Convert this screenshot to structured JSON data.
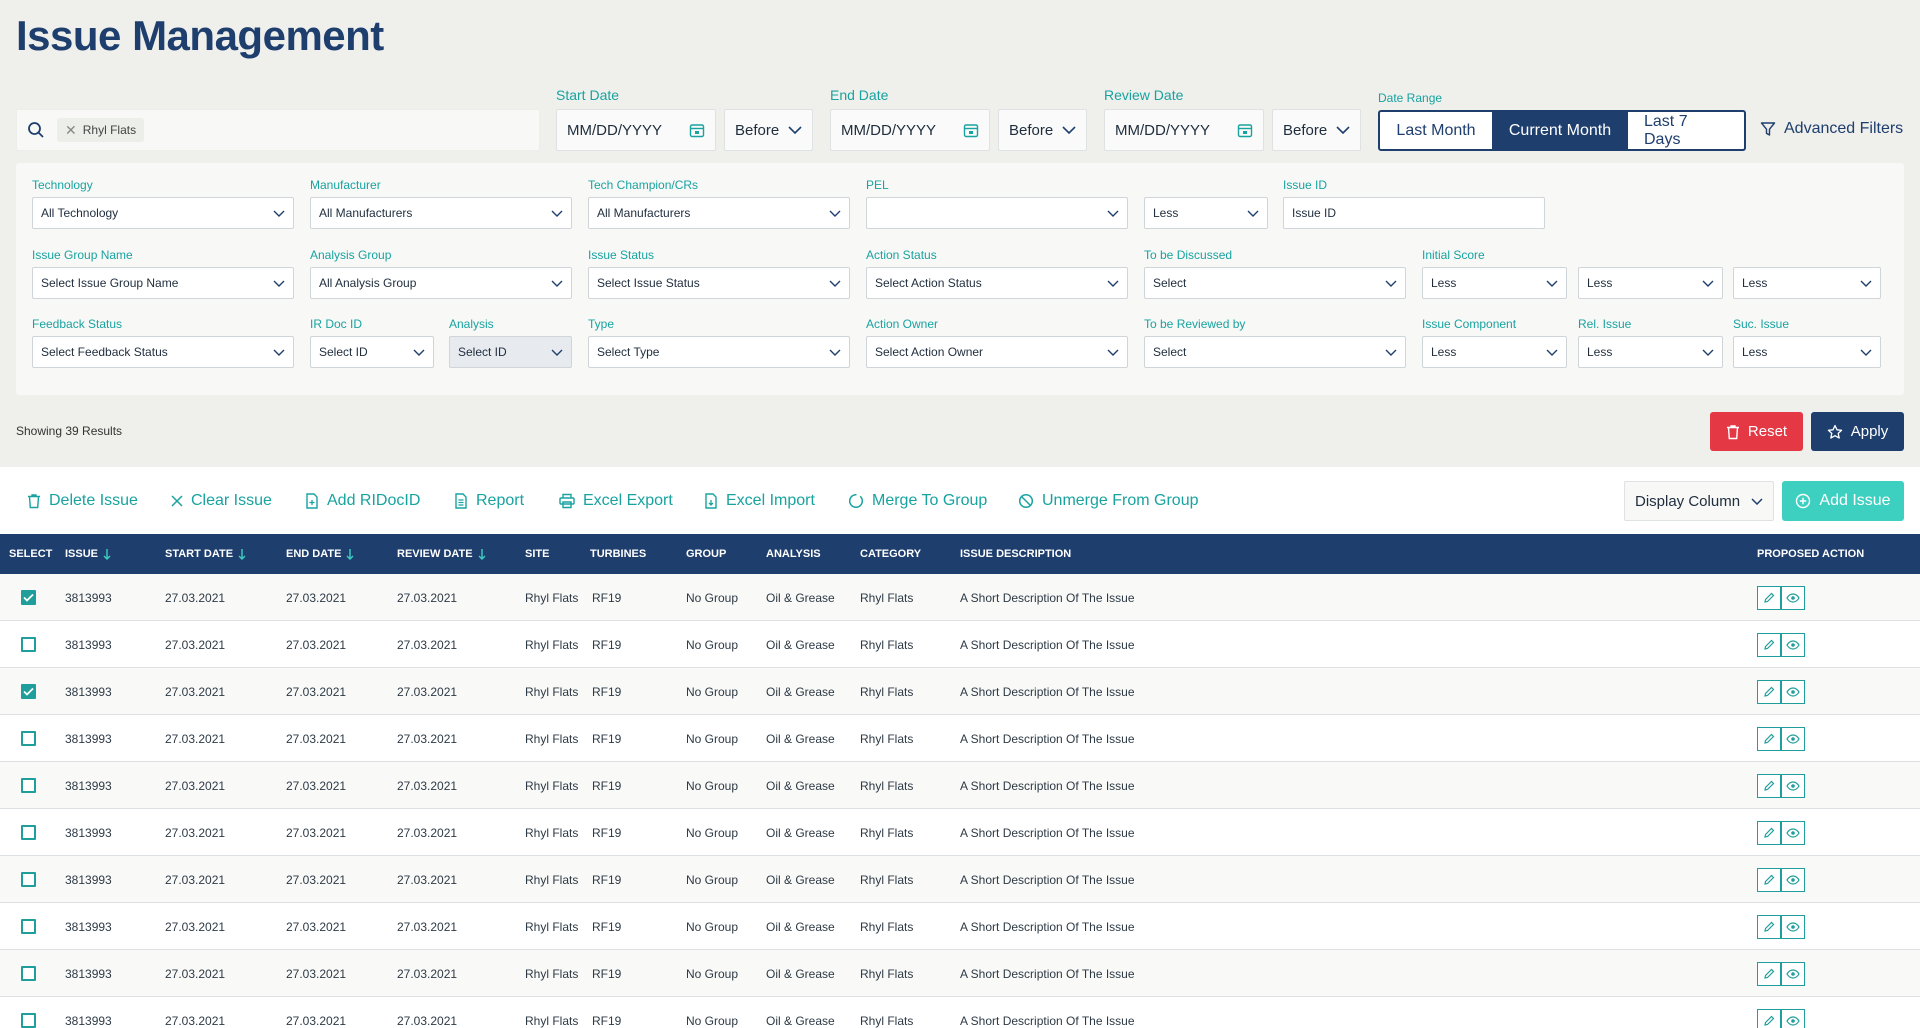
{
  "page": {
    "title": "Issue Management"
  },
  "search": {
    "chip": "Rhyl Flats"
  },
  "dates": {
    "start": {
      "label": "Start Date",
      "placeholder": "MM/DD/YYYY",
      "mode": "Before"
    },
    "end": {
      "label": "End Date",
      "placeholder": "MM/DD/YYYY",
      "mode": "Before"
    },
    "review": {
      "label": "Review Date",
      "placeholder": "MM/DD/YYYY",
      "mode": "Before"
    }
  },
  "date_range": {
    "label": "Date Range",
    "options": [
      "Last Month",
      "Current Month",
      "Last 7 Days"
    ],
    "selected": "Current Month"
  },
  "advanced_filters": "Advanced Filters",
  "filters": {
    "technology": {
      "label": "Technology",
      "value": "All Technology"
    },
    "manufacturer": {
      "label": "Manufacturer",
      "value": "All Manufacturers"
    },
    "tech_champion": {
      "label": "Tech Champion/CRs",
      "value": "All Manufacturers"
    },
    "pel": {
      "label": "PEL",
      "value": ""
    },
    "pel_cmp": {
      "value": "Less"
    },
    "issue_id": {
      "label": "Issue ID",
      "value": "Issue ID"
    },
    "issue_group": {
      "label": "Issue Group Name",
      "value": "Select Issue Group Name"
    },
    "analysis_group": {
      "label": "Analysis Group",
      "value": "All Analysis Group"
    },
    "issue_status": {
      "label": "Issue Status",
      "value": "Select Issue Status"
    },
    "action_status": {
      "label": "Action Status",
      "value": "Select Action Status"
    },
    "to_be_discussed": {
      "label": "To be Discussed",
      "value": "Select"
    },
    "initial_score": {
      "label": "Initial Score",
      "values": [
        "Less",
        "Less",
        "Less"
      ]
    },
    "feedback_status": {
      "label": "Feedback Status",
      "value": "Select Feedback Status"
    },
    "ir_doc_id": {
      "label": "IR Doc ID",
      "value": "Select ID"
    },
    "analysis": {
      "label": "Analysis",
      "value": "Select ID"
    },
    "type": {
      "label": "Type",
      "value": "Select Type"
    },
    "action_owner": {
      "label": "Action Owner",
      "value": "Select Action Owner"
    },
    "to_be_reviewed": {
      "label": "To be Reviewed by",
      "value": "Select"
    },
    "issue_component": {
      "label": "Issue Component",
      "value": "Less"
    },
    "rel_issue": {
      "label": "Rel. Issue",
      "value": "Less"
    },
    "suc_issue": {
      "label": "Suc. Issue",
      "value": "Less"
    }
  },
  "results": {
    "text": "Showing 39 Results"
  },
  "buttons": {
    "reset": "Reset",
    "apply": "Apply",
    "display_column": "Display Column",
    "add_issue": "Add Issue"
  },
  "toolbar": {
    "delete": "Delete Issue",
    "clear": "Clear Issue",
    "add_ridocid": "Add RIDocID",
    "report": "Report",
    "excel_export": "Excel Export",
    "excel_import": "Excel Import",
    "merge": "Merge To Group",
    "unmerge": "Unmerge From Group"
  },
  "table": {
    "columns": [
      "SELECT",
      "ISSUE",
      "START DATE",
      "END DATE",
      "REVIEW DATE",
      "SITE",
      "TURBINES",
      "GROUP",
      "ANALYSIS",
      "CATEGORY",
      "ISSUE DESCRIPTION",
      "PROPOSED ACTION"
    ],
    "rows": [
      {
        "checked": true,
        "issue": "3813993",
        "start": "27.03.2021",
        "end": "27.03.2021",
        "review": "27.03.2021",
        "site": "Rhyl Flats",
        "turbines": "RF19",
        "group": "No Group",
        "analysis": "Oil & Grease",
        "category": "Rhyl Flats",
        "description": "A Short Description Of The Issue"
      },
      {
        "checked": false,
        "issue": "3813993",
        "start": "27.03.2021",
        "end": "27.03.2021",
        "review": "27.03.2021",
        "site": "Rhyl Flats",
        "turbines": "RF19",
        "group": "No Group",
        "analysis": "Oil & Grease",
        "category": "Rhyl Flats",
        "description": "A Short Description Of The Issue"
      },
      {
        "checked": true,
        "issue": "3813993",
        "start": "27.03.2021",
        "end": "27.03.2021",
        "review": "27.03.2021",
        "site": "Rhyl Flats",
        "turbines": "RF19",
        "group": "No Group",
        "analysis": "Oil & Grease",
        "category": "Rhyl Flats",
        "description": "A Short Description Of The Issue"
      },
      {
        "checked": false,
        "issue": "3813993",
        "start": "27.03.2021",
        "end": "27.03.2021",
        "review": "27.03.2021",
        "site": "Rhyl Flats",
        "turbines": "RF19",
        "group": "No Group",
        "analysis": "Oil & Grease",
        "category": "Rhyl Flats",
        "description": "A Short Description Of The Issue"
      },
      {
        "checked": false,
        "issue": "3813993",
        "start": "27.03.2021",
        "end": "27.03.2021",
        "review": "27.03.2021",
        "site": "Rhyl Flats",
        "turbines": "RF19",
        "group": "No Group",
        "analysis": "Oil & Grease",
        "category": "Rhyl Flats",
        "description": "A Short Description Of The Issue"
      },
      {
        "checked": false,
        "issue": "3813993",
        "start": "27.03.2021",
        "end": "27.03.2021",
        "review": "27.03.2021",
        "site": "Rhyl Flats",
        "turbines": "RF19",
        "group": "No Group",
        "analysis": "Oil & Grease",
        "category": "Rhyl Flats",
        "description": "A Short Description Of The Issue"
      },
      {
        "checked": false,
        "issue": "3813993",
        "start": "27.03.2021",
        "end": "27.03.2021",
        "review": "27.03.2021",
        "site": "Rhyl Flats",
        "turbines": "RF19",
        "group": "No Group",
        "analysis": "Oil & Grease",
        "category": "Rhyl Flats",
        "description": "A Short Description Of The Issue"
      },
      {
        "checked": false,
        "issue": "3813993",
        "start": "27.03.2021",
        "end": "27.03.2021",
        "review": "27.03.2021",
        "site": "Rhyl Flats",
        "turbines": "RF19",
        "group": "No Group",
        "analysis": "Oil & Grease",
        "category": "Rhyl Flats",
        "description": "A Short Description Of The Issue"
      },
      {
        "checked": false,
        "issue": "3813993",
        "start": "27.03.2021",
        "end": "27.03.2021",
        "review": "27.03.2021",
        "site": "Rhyl Flats",
        "turbines": "RF19",
        "group": "No Group",
        "analysis": "Oil & Grease",
        "category": "Rhyl Flats",
        "description": "A Short Description Of The Issue"
      },
      {
        "checked": false,
        "issue": "3813993",
        "start": "27.03.2021",
        "end": "27.03.2021",
        "review": "27.03.2021",
        "site": "Rhyl Flats",
        "turbines": "RF19",
        "group": "No Group",
        "analysis": "Oil & Grease",
        "category": "Rhyl Flats",
        "description": "A Short Description Of The Issue"
      }
    ]
  },
  "colors": {
    "navy": "#1e3e6e",
    "teal": "#18a3a0",
    "reset_red": "#e53845",
    "add_issue_teal": "#3dcfc0"
  },
  "icons": [
    "search-icon",
    "close-icon",
    "calendar-icon",
    "chevron-down-icon",
    "filter-icon",
    "trash-icon",
    "star-icon",
    "file-icon",
    "print-icon",
    "merge-icon",
    "unmerge-icon",
    "plus-circle-icon",
    "sort-arrow-icon",
    "edit-icon",
    "eye-icon",
    "checkbox-icon"
  ]
}
